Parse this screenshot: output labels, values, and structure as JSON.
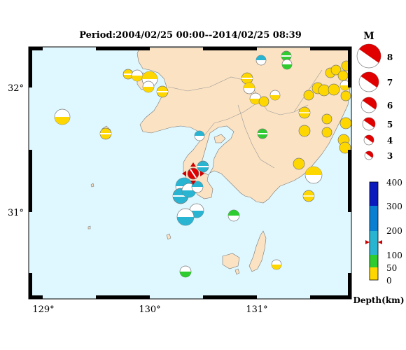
{
  "title": "Period:2004/02/25 00:00--2014/02/25 08:39",
  "lon_labels": [
    "129°",
    "130°",
    "131°"
  ],
  "lat_labels": [
    "32°",
    "31°"
  ],
  "magnitude_legend": {
    "header": "M",
    "items": [
      "8",
      "7",
      "6",
      "5",
      "4",
      "3"
    ]
  },
  "depth_legend": {
    "unit_label": "Depth(km)",
    "ticks": [
      "400",
      "300",
      "200",
      "100",
      "50",
      "0"
    ],
    "colors": {
      "0_50": "#ffd700",
      "50_100": "#2ecc2e",
      "100_200": "#29b4d2",
      "200_300": "#0b7fd1",
      "300_400": "#0b1bbd"
    }
  },
  "colors": {
    "sea": "#dff8ff",
    "land": "#fbe2c2",
    "highlight": "#e00000"
  }
}
